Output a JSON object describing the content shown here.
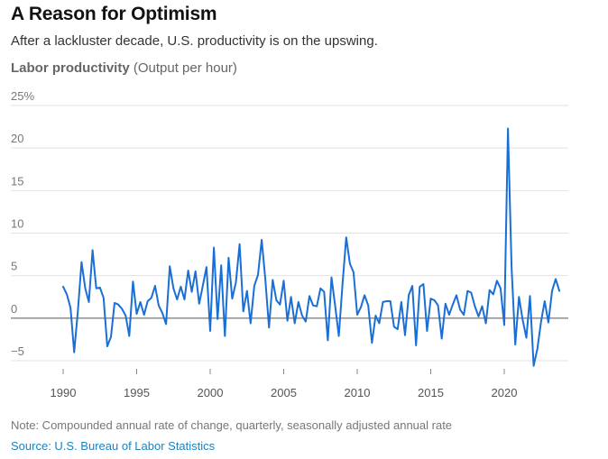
{
  "header": {
    "title": "A Reason for Optimism",
    "subtitle": "After a lackluster decade, U.S. productivity is on the upswing."
  },
  "axis_title": {
    "main": "Labor productivity",
    "unit": "(Output per hour)"
  },
  "footer": {
    "note": "Note: Compounded annual rate of change, quarterly, seasonally adjusted annual rate",
    "source": "Source: U.S. Bureau of Labor Statistics"
  },
  "colors": {
    "line": "#1a6fd6",
    "grid": "#e2e2e2",
    "zero": "#555555"
  },
  "chart_data": {
    "type": "line",
    "title": "A Reason for Optimism",
    "subtitle": "After a lackluster decade, U.S. productivity is on the upswing.",
    "ylabel": "Labor productivity (Output per hour)",
    "xlabel": "",
    "ylim": [
      -5,
      25
    ],
    "xlim": [
      1990,
      2024
    ],
    "y_ticks": [
      {
        "value": 25,
        "label": "25%"
      },
      {
        "value": 20,
        "label": "20"
      },
      {
        "value": 15,
        "label": "15"
      },
      {
        "value": 10,
        "label": "10"
      },
      {
        "value": 5,
        "label": "5"
      },
      {
        "value": 0,
        "label": "0"
      },
      {
        "value": -5,
        "label": "−5"
      }
    ],
    "x_ticks": [
      {
        "value": 1990,
        "label": "1990"
      },
      {
        "value": 1995,
        "label": "1995"
      },
      {
        "value": 2000,
        "label": "2000"
      },
      {
        "value": 2005,
        "label": "2005"
      },
      {
        "value": 2010,
        "label": "2010"
      },
      {
        "value": 2015,
        "label": "2015"
      },
      {
        "value": 2020,
        "label": "2020"
      }
    ],
    "grid": true,
    "series": [
      {
        "x": [
          1990.0,
          1990.25,
          1990.5,
          1990.75,
          1991.0,
          1991.25,
          1991.5,
          1991.75,
          1992.0,
          1992.25,
          1992.5,
          1992.75,
          1993.0,
          1993.25,
          1993.5,
          1993.75,
          1994.0,
          1994.25,
          1994.5,
          1994.75,
          1995.0,
          1995.25,
          1995.5,
          1995.75,
          1996.0,
          1996.25,
          1996.5,
          1996.75,
          1997.0,
          1997.25,
          1997.5,
          1997.75,
          1998.0,
          1998.25,
          1998.5,
          1998.75,
          1999.0,
          1999.25,
          1999.5,
          1999.75,
          2000.0,
          2000.25,
          2000.5,
          2000.75,
          2001.0,
          2001.25,
          2001.5,
          2001.75,
          2002.0,
          2002.25,
          2002.5,
          2002.75,
          2003.0,
          2003.25,
          2003.5,
          2003.75,
          2004.0,
          2004.25,
          2004.5,
          2004.75,
          2005.0,
          2005.25,
          2005.5,
          2005.75,
          2006.0,
          2006.25,
          2006.5,
          2006.75,
          2007.0,
          2007.25,
          2007.5,
          2007.75,
          2008.0,
          2008.25,
          2008.5,
          2008.75,
          2009.0,
          2009.25,
          2009.5,
          2009.75,
          2010.0,
          2010.25,
          2010.5,
          2010.75,
          2011.0,
          2011.25,
          2011.5,
          2011.75,
          2012.0,
          2012.25,
          2012.5,
          2012.75,
          2013.0,
          2013.25,
          2013.5,
          2013.75,
          2014.0,
          2014.25,
          2014.5,
          2014.75,
          2015.0,
          2015.25,
          2015.5,
          2015.75,
          2016.0,
          2016.25,
          2016.5,
          2016.75,
          2017.0,
          2017.25,
          2017.5,
          2017.75,
          2018.0,
          2018.25,
          2018.5,
          2018.75,
          2019.0,
          2019.25,
          2019.5,
          2019.75,
          2020.0,
          2020.25,
          2020.5,
          2020.75,
          2021.0,
          2021.25,
          2021.5,
          2021.75,
          2022.0,
          2022.25,
          2022.5,
          2022.75,
          2023.0,
          2023.25,
          2023.5,
          2023.75
        ],
        "values": [
          3.7,
          2.8,
          1.2,
          -4.0,
          0.8,
          6.6,
          3.5,
          1.9,
          8.0,
          3.5,
          3.6,
          2.4,
          -3.3,
          -2.2,
          1.8,
          1.6,
          1.1,
          0.3,
          -2.1,
          4.3,
          0.5,
          1.9,
          0.4,
          2.0,
          2.4,
          3.8,
          1.5,
          0.6,
          -0.7,
          6.1,
          3.5,
          2.2,
          3.7,
          2.2,
          5.6,
          3.1,
          5.5,
          1.7,
          3.8,
          6.0,
          -1.5,
          8.3,
          -0.1,
          6.2,
          -2.1,
          7.1,
          2.3,
          4.2,
          8.7,
          0.8,
          3.2,
          -0.6,
          3.8,
          5.1,
          9.2,
          4.6,
          -1.1,
          4.5,
          2.1,
          1.6,
          4.4,
          -0.3,
          2.5,
          -0.6,
          1.9,
          0.3,
          -0.4,
          2.6,
          1.5,
          1.4,
          3.5,
          3.1,
          -2.6,
          4.8,
          1.4,
          -2.1,
          4.0,
          9.5,
          6.4,
          5.4,
          0.4,
          1.3,
          2.7,
          1.5,
          -2.9,
          0.3,
          -0.6,
          1.9,
          2.0,
          2.0,
          -1.0,
          -1.3,
          1.9,
          -2.0,
          2.7,
          3.8,
          -3.2,
          3.7,
          4.0,
          -1.5,
          2.3,
          2.1,
          1.5,
          -2.4,
          1.7,
          0.4,
          1.6,
          2.7,
          1.0,
          0.4,
          3.2,
          3.0,
          1.4,
          0.2,
          1.4,
          -0.6,
          3.3,
          2.8,
          4.4,
          3.5,
          -0.8,
          22.3,
          6.0,
          -3.1,
          2.5,
          -0.2,
          -2.3,
          2.6,
          -5.6,
          -3.6,
          -0.4,
          2.0,
          -0.5,
          3.2,
          4.6,
          3.2
        ]
      }
    ]
  }
}
